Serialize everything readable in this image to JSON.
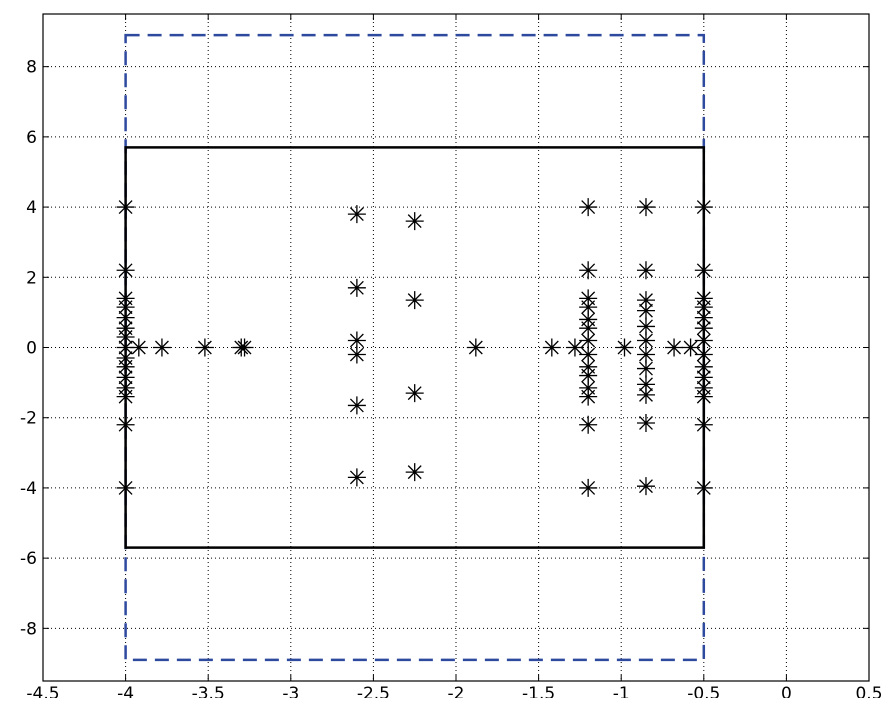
{
  "chart_data": {
    "type": "scatter",
    "title": "",
    "xlabel": "",
    "ylabel": "",
    "xlim": [
      -4.5,
      0.5
    ],
    "ylim": [
      -9.5,
      9.5
    ],
    "grid": true,
    "xticks": [
      "-4.5",
      "-4",
      "-3.5",
      "-3",
      "-2.5",
      "-2",
      "-1.5",
      "-1",
      "-0.5",
      "0",
      "0.5"
    ],
    "xtick_values": [
      -4.5,
      -4,
      -3.5,
      -3,
      -2.5,
      -2,
      -1.5,
      -1,
      -0.5,
      0,
      0.5
    ],
    "yticks": [
      "-8",
      "-6",
      "-4",
      "-2",
      "0",
      "2",
      "4",
      "6",
      "8"
    ],
    "ytick_values": [
      -8,
      -6,
      -4,
      -2,
      0,
      2,
      4,
      6,
      8
    ],
    "regions": [
      {
        "style": "dashed",
        "color": "#2e4a9e",
        "x": [
          -4,
          -0.5
        ],
        "y": [
          -8.9,
          8.9
        ]
      },
      {
        "style": "solid",
        "color": "#000000",
        "x": [
          -4,
          -0.5
        ],
        "y": [
          -5.7,
          5.7
        ]
      }
    ],
    "marker": "asterisk",
    "marker_color": "#000000",
    "points": [
      [
        -4,
        4
      ],
      [
        -4,
        -4
      ],
      [
        -4,
        2.2
      ],
      [
        -4,
        -2.2
      ],
      [
        -4,
        1.4
      ],
      [
        -4,
        -1.4
      ],
      [
        -4,
        1.15
      ],
      [
        -4,
        -1.15
      ],
      [
        -4,
        0.85
      ],
      [
        -4,
        -0.85
      ],
      [
        -4,
        0.55
      ],
      [
        -4,
        -0.55
      ],
      [
        -4,
        0.3
      ],
      [
        -4,
        -0.3
      ],
      [
        -4,
        0
      ],
      [
        -3.92,
        0
      ],
      [
        -3.78,
        0
      ],
      [
        -3.52,
        0
      ],
      [
        -3.3,
        0
      ],
      [
        -3.28,
        0
      ],
      [
        -2.6,
        3.8
      ],
      [
        -2.6,
        -3.7
      ],
      [
        -2.6,
        1.7
      ],
      [
        -2.6,
        -1.65
      ],
      [
        -2.6,
        0.2
      ],
      [
        -2.6,
        -0.2
      ],
      [
        -2.25,
        3.6
      ],
      [
        -2.25,
        -3.55
      ],
      [
        -2.25,
        1.35
      ],
      [
        -2.25,
        -1.3
      ],
      [
        -1.88,
        0
      ],
      [
        -1.42,
        0
      ],
      [
        -1.28,
        0
      ],
      [
        -1.2,
        4
      ],
      [
        -1.2,
        -4
      ],
      [
        -1.2,
        2.2
      ],
      [
        -1.2,
        -2.2
      ],
      [
        -1.2,
        1.4
      ],
      [
        -1.2,
        -1.4
      ],
      [
        -1.2,
        1.15
      ],
      [
        -1.2,
        -1.15
      ],
      [
        -1.2,
        0.8
      ],
      [
        -1.2,
        -0.8
      ],
      [
        -1.2,
        0.55
      ],
      [
        -1.2,
        -0.55
      ],
      [
        -1.2,
        0.2
      ],
      [
        -1.2,
        -0.2
      ],
      [
        -0.98,
        0
      ],
      [
        -0.85,
        4
      ],
      [
        -0.85,
        -3.95
      ],
      [
        -0.85,
        2.2
      ],
      [
        -0.85,
        -2.15
      ],
      [
        -0.85,
        1.35
      ],
      [
        -0.85,
        -1.35
      ],
      [
        -0.85,
        1.05
      ],
      [
        -0.85,
        -1.05
      ],
      [
        -0.85,
        0.6
      ],
      [
        -0.85,
        -0.6
      ],
      [
        -0.85,
        0.2
      ],
      [
        -0.85,
        -0.2
      ],
      [
        -0.68,
        0
      ],
      [
        -0.58,
        0
      ],
      [
        -0.5,
        4
      ],
      [
        -0.5,
        -4
      ],
      [
        -0.5,
        2.2
      ],
      [
        -0.5,
        -2.2
      ],
      [
        -0.5,
        1.4
      ],
      [
        -0.5,
        -1.4
      ],
      [
        -0.5,
        1.15
      ],
      [
        -0.5,
        -1.15
      ],
      [
        -0.5,
        0.85
      ],
      [
        -0.5,
        -0.85
      ],
      [
        -0.5,
        0.55
      ],
      [
        -0.5,
        -0.55
      ],
      [
        -0.5,
        0.2
      ],
      [
        -0.5,
        -0.2
      ]
    ]
  }
}
